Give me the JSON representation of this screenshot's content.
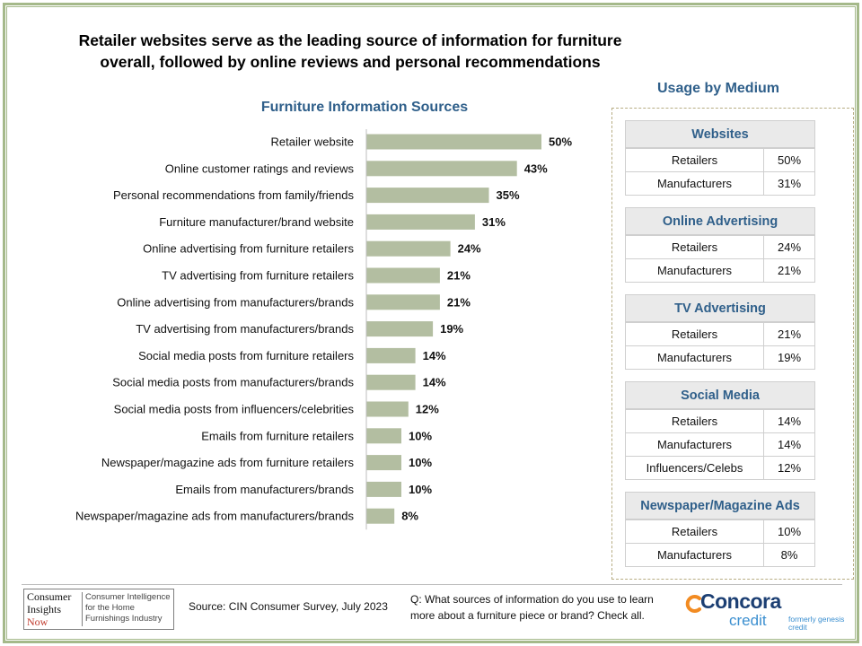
{
  "headline": {
    "line1": "Retailer websites serve as the leading source of information  for furniture",
    "line2": "overall, followed by online reviews and personal recommendations"
  },
  "chart_data": {
    "type": "bar",
    "orientation": "horizontal",
    "title": "Furniture Information Sources",
    "categories": [
      "Retailer website",
      "Online customer ratings and reviews",
      "Personal recommendations from family/friends",
      "Furniture manufacturer/brand website",
      "Online advertising from furniture retailers",
      "TV advertising from furniture retailers",
      "Online advertising from manufacturers/brands",
      "TV advertising from manufacturers/brands",
      "Social media posts from furniture retailers",
      "Social media posts from manufacturers/brands",
      "Social media posts from influencers/celebrities",
      "Emails from furniture retailers",
      "Newspaper/magazine ads from furniture retailers",
      "Emails from manufacturers/brands",
      "Newspaper/magazine ads from manufacturers/brands"
    ],
    "values": [
      50,
      43,
      35,
      31,
      24,
      21,
      21,
      19,
      14,
      14,
      12,
      10,
      10,
      10,
      8
    ],
    "value_labels": [
      "50%",
      "43%",
      "35%",
      "31%",
      "24%",
      "21%",
      "21%",
      "19%",
      "14%",
      "14%",
      "12%",
      "10%",
      "10%",
      "10%",
      "8%"
    ],
    "bar_color": "#b3bea1",
    "xlim": [
      0,
      100
    ]
  },
  "usage": {
    "title": "Usage by Medium",
    "groups": [
      {
        "name": "Websites",
        "rows": [
          {
            "label": "Retailers",
            "value": "50%"
          },
          {
            "label": "Manufacturers",
            "value": "31%"
          }
        ]
      },
      {
        "name": "Online Advertising",
        "rows": [
          {
            "label": "Retailers",
            "value": "24%"
          },
          {
            "label": "Manufacturers",
            "value": "21%"
          }
        ]
      },
      {
        "name": "TV Advertising",
        "rows": [
          {
            "label": "Retailers",
            "value": "21%"
          },
          {
            "label": "Manufacturers",
            "value": "19%"
          }
        ]
      },
      {
        "name": "Social Media",
        "rows": [
          {
            "label": "Retailers",
            "value": "14%"
          },
          {
            "label": "Manufacturers",
            "value": "14%"
          },
          {
            "label": "Influencers/Celebs",
            "value": "12%"
          }
        ]
      },
      {
        "name": "Newspaper/Magazine Ads",
        "rows": [
          {
            "label": "Retailers",
            "value": "10%"
          },
          {
            "label": "Manufacturers",
            "value": "8%"
          }
        ]
      }
    ]
  },
  "footer": {
    "logo_left": [
      "Consumer",
      "Insights",
      "Now"
    ],
    "logo_right": "Consumer Intelligence for the Home Furnishings Industry",
    "source": "Source: CIN Consumer Survey, July 2023",
    "question": "Q: What sources of information do you use to learn more about a furniture piece or brand? Check all.",
    "brand_name": "Concora",
    "brand_sub": "credit",
    "brand_formerly": "formerly genesis credit"
  },
  "colors": {
    "frame": "#a5b98a",
    "title_blue": "#2f5f8a",
    "brand_navy": "#1c3f73",
    "brand_light": "#3b8fd0",
    "brand_orange": "#f28b22"
  }
}
